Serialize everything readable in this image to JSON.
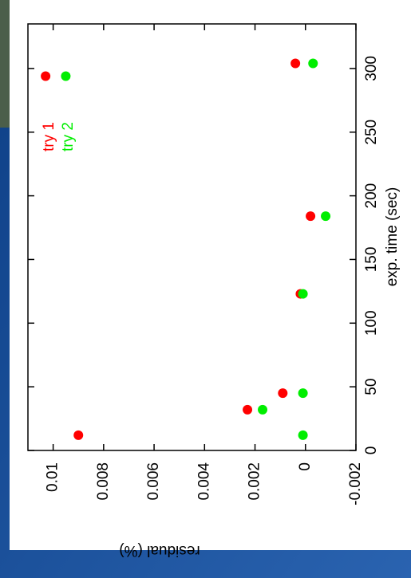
{
  "chart_data": {
    "type": "scatter",
    "xlabel": "exp. time (sec)",
    "ylabel": "residual (%)",
    "xlim": [
      0,
      335
    ],
    "xticks": [
      0,
      50,
      100,
      150,
      200,
      250,
      300
    ],
    "ylim": [
      -0.002,
      0.011
    ],
    "yticks": [
      -0.002,
      0,
      0.002,
      0.004,
      0.006,
      0.008,
      0.01
    ],
    "legend": "upper right",
    "series": [
      {
        "name": "try 1",
        "color": "#ff0000",
        "x": [
          12,
          32,
          45,
          123,
          184,
          294,
          304
        ],
        "values": [
          0.009,
          0.0023,
          0.0009,
          0.0002,
          -0.0002,
          0.0103,
          0.0004
        ]
      },
      {
        "name": "try 2",
        "color": "#00ee00",
        "x": [
          12,
          32,
          45,
          123,
          184,
          294,
          304
        ],
        "values": [
          0.0001,
          0.0017,
          0.0001,
          0.0001,
          -0.0008,
          0.0095,
          -0.0003
        ]
      }
    ]
  }
}
